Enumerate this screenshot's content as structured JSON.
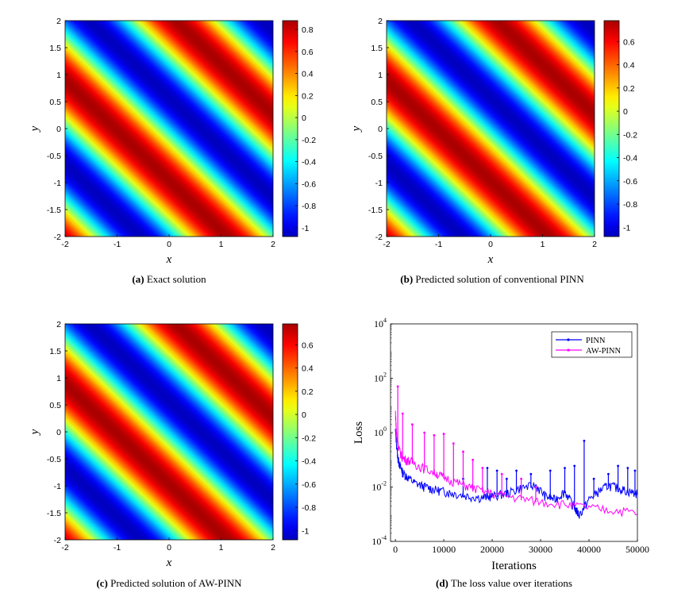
{
  "captions": [
    {
      "tag": "(a)",
      "text": "Exact solution"
    },
    {
      "tag": "(b)",
      "text": "Predicted solution of conventional PINN"
    },
    {
      "tag": "(c)",
      "text": "Predicted solution of AW-PINN"
    },
    {
      "tag": "(d)",
      "text": "The loss value over iterations"
    }
  ],
  "chart_data": [
    {
      "type": "heatmap",
      "id": "a",
      "title": "Exact solution",
      "xlabel": "x",
      "ylabel": "y",
      "xlim": [
        -2,
        2
      ],
      "ylim": [
        -2,
        2
      ],
      "xticks": [
        "-2",
        "-1",
        "0",
        "1",
        "2"
      ],
      "yticks": [
        "2",
        "1.5",
        "1",
        "0.5",
        "0",
        "-0.5",
        "-1",
        "-1.5",
        "-2"
      ],
      "colorbar_ticks": [
        "0.8",
        "0.6",
        "0.4",
        "0.2",
        "0",
        "-0.2",
        "-0.4",
        "-0.6",
        "-0.8",
        "-1"
      ],
      "clim": [
        -1.08,
        0.88
      ],
      "field": "diagonal sinusoidal bands, red ridges at x + y ≈ -1 and x + y ≈ 2.2",
      "colormap": "jet"
    },
    {
      "type": "heatmap",
      "id": "b",
      "title": "Predicted solution of conventional PINN",
      "xlabel": "x",
      "ylabel": "y",
      "xlim": [
        -2,
        2
      ],
      "ylim": [
        -2,
        2
      ],
      "xticks": [
        "-2",
        "-1",
        "0",
        "1",
        "2"
      ],
      "yticks": [
        "2",
        "1.5",
        "1",
        "0.5",
        "0",
        "-0.5",
        "-1",
        "-1.5",
        "-2"
      ],
      "colorbar_ticks": [
        "0.6",
        "0.4",
        "0.2",
        "0",
        "-0.2",
        "-0.4",
        "-0.6",
        "-0.8",
        "-1"
      ],
      "clim": [
        -1.08,
        0.78
      ],
      "field": "diagonal sinusoidal bands, red ridges at x + y ≈ -1 and x + y ≈ 2.2",
      "colormap": "jet"
    },
    {
      "type": "heatmap",
      "id": "c",
      "title": "Predicted solution of AW-PINN",
      "xlabel": "x",
      "ylabel": "y",
      "xlim": [
        -2,
        2
      ],
      "ylim": [
        -2,
        2
      ],
      "xticks": [
        "-2",
        "-1",
        "0",
        "1",
        "2"
      ],
      "yticks": [
        "2",
        "1.5",
        "1",
        "0.5",
        "0",
        "-0.5",
        "-1",
        "-1.5",
        "-2"
      ],
      "colorbar_ticks": [
        "0.6",
        "0.4",
        "0.2",
        "0",
        "-0.2",
        "-0.4",
        "-0.6",
        "-0.8",
        "-1"
      ],
      "clim": [
        -1.08,
        0.78
      ],
      "field": "diagonal sinusoidal bands, red ridges at x + y ≈ -1 and x + y ≈ 2.2",
      "colormap": "jet"
    },
    {
      "type": "line",
      "id": "d",
      "title": "The loss value over iterations",
      "xlabel": "Iterations",
      "ylabel": "Loss",
      "xlim": [
        -1000,
        50000
      ],
      "ylim": [
        0.0001,
        10000
      ],
      "yscale": "log",
      "xticks": [
        "0",
        "10000",
        "20000",
        "30000",
        "40000",
        "50000"
      ],
      "yticks": [
        {
          "base": "10",
          "exp": "4"
        },
        {
          "base": "10",
          "exp": "2"
        },
        {
          "base": "10",
          "exp": "0"
        },
        {
          "base": "10",
          "exp": "-2"
        },
        {
          "base": "10",
          "exp": "-4"
        }
      ],
      "legend": "top-right",
      "series": [
        {
          "name": "PINN",
          "color": "#0000ff",
          "x": [
            0,
            500,
            1000,
            1500,
            2500,
            4000,
            6000,
            8000,
            10000,
            12000,
            15000,
            18000,
            20000,
            23000,
            26000,
            29000,
            31000,
            33000,
            35000,
            37000,
            38000,
            40000,
            42000,
            44000,
            46000,
            48000,
            50000
          ],
          "y": [
            1.0,
            0.1,
            0.05,
            0.03,
            0.02,
            0.012,
            0.009,
            0.007,
            0.006,
            0.005,
            0.004,
            0.0035,
            0.004,
            0.005,
            0.008,
            0.01,
            0.004,
            0.003,
            0.006,
            0.0015,
            0.0008,
            0.003,
            0.006,
            0.01,
            0.008,
            0.006,
            0.005
          ],
          "spikes": [
            [
              14000,
              0.02
            ],
            [
              19000,
              0.05
            ],
            [
              21000,
              0.04
            ],
            [
              23000,
              0.02
            ],
            [
              25000,
              0.04
            ],
            [
              28000,
              0.03
            ],
            [
              32000,
              0.04
            ],
            [
              35000,
              0.05
            ],
            [
              37000,
              0.06
            ],
            [
              39000,
              0.5
            ],
            [
              41000,
              0.02
            ],
            [
              44000,
              0.03
            ],
            [
              46000,
              0.06
            ],
            [
              48000,
              0.05
            ],
            [
              49500,
              0.04
            ]
          ]
        },
        {
          "name": "AW-PINN",
          "color": "#ff00ff",
          "x": [
            0,
            300,
            800,
            1500,
            3000,
            5000,
            8000,
            10000,
            13000,
            16000,
            20000,
            25000,
            30000,
            35000,
            40000,
            45000,
            50000
          ],
          "y": [
            5.0,
            0.5,
            0.2,
            0.1,
            0.08,
            0.05,
            0.03,
            0.02,
            0.012,
            0.008,
            0.005,
            0.0035,
            0.0025,
            0.002,
            0.0015,
            0.0012,
            0.001
          ],
          "spikes": [
            [
              500,
              50
            ],
            [
              1500,
              5
            ],
            [
              3500,
              2
            ],
            [
              6000,
              1
            ],
            [
              8000,
              0.8
            ],
            [
              10000,
              0.9
            ],
            [
              12000,
              0.4
            ],
            [
              14000,
              0.2
            ],
            [
              16000,
              0.1
            ],
            [
              18000,
              0.05
            ],
            [
              22000,
              0.03
            ],
            [
              26000,
              0.02
            ],
            [
              29000,
              0.01
            ]
          ]
        }
      ]
    }
  ]
}
